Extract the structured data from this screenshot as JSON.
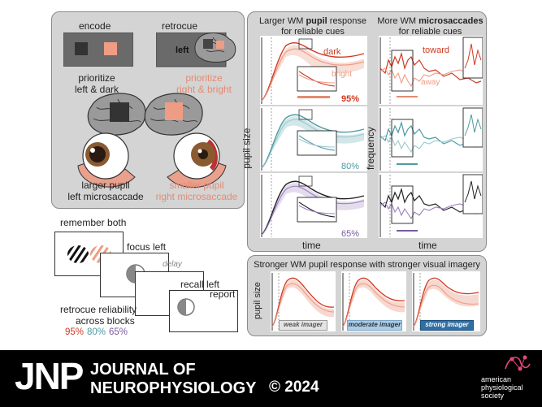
{
  "colors": {
    "dark": "#cf3a22",
    "bright": "#ef9c84",
    "teal": "#4d9aa3",
    "purple": "#7a5aa0",
    "salmon": "#e48b73",
    "panel": "#d4d4d4",
    "screen": "#6a6a6a"
  },
  "left_panel": {
    "encode": "encode",
    "retrocue": "retrocue",
    "cue_word": "left",
    "prioritize_left_1": "prioritize",
    "prioritize_left_2": "left & dark",
    "prioritize_right_1": "prioritize",
    "prioritize_right_2": "right & bright",
    "result_left_1": "larger pupil",
    "result_left_2": "left microsaccade",
    "result_right_1": "smaller pupil",
    "result_right_2": "right microsaccade"
  },
  "task": {
    "remember": "remember both",
    "focus": "focus left",
    "delay": "delay",
    "recall": "recall left",
    "report": "report",
    "reliability_1": "retrocue reliability",
    "reliability_2": "across blocks",
    "levels": [
      "95%",
      "80%",
      "65%"
    ]
  },
  "pupil_panel": {
    "title_1_pre": "Larger WM ",
    "title_1_bold": "pupil",
    "title_1_post": " response",
    "title_2": "for reliable cues",
    "dark": "dark",
    "bright": "bright",
    "ylabel": "pupil size",
    "xlabel": "time",
    "levels": [
      "95%",
      "80%",
      "65%"
    ]
  },
  "micro_panel": {
    "title_1_pre": "More WM ",
    "title_1_bold": "microsaccades",
    "title_2": "for reliable cues",
    "toward": "toward",
    "away": "away",
    "ylabel": "frequency",
    "xlabel": "time"
  },
  "imagery_panel": {
    "title": "Stronger WM pupil response with stronger visual imagery",
    "ylabel": "pupil size",
    "groups": [
      "weak imager",
      "moderate imager",
      "strong imager"
    ]
  },
  "footer": {
    "logo": "JNP",
    "journal_1": "JOURNAL OF",
    "journal_2": "NEUROPHYSIOLOGY",
    "year": "© 2024",
    "society_1": "american",
    "society_2": "physiological",
    "society_3": "society"
  }
}
